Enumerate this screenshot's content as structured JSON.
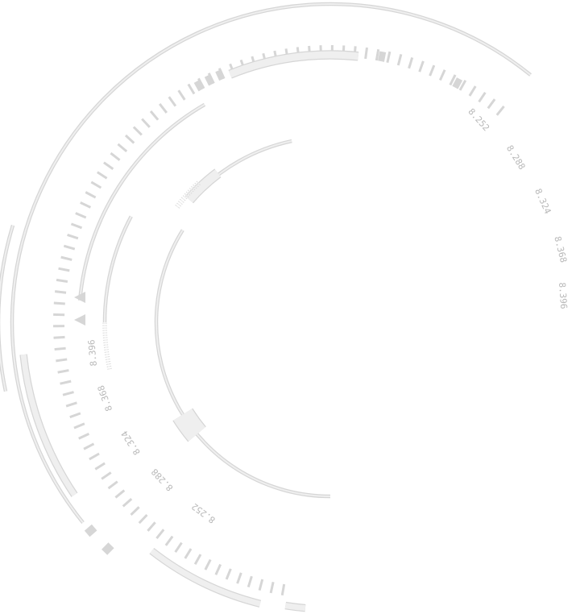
{
  "color": "#efefef",
  "labels_right": [
    "8.252",
    "8.288",
    "8.324",
    "8.368",
    "8.396"
  ],
  "labels_left": [
    "8.396",
    "8.368",
    "8.324",
    "8.288",
    "8.252"
  ]
}
